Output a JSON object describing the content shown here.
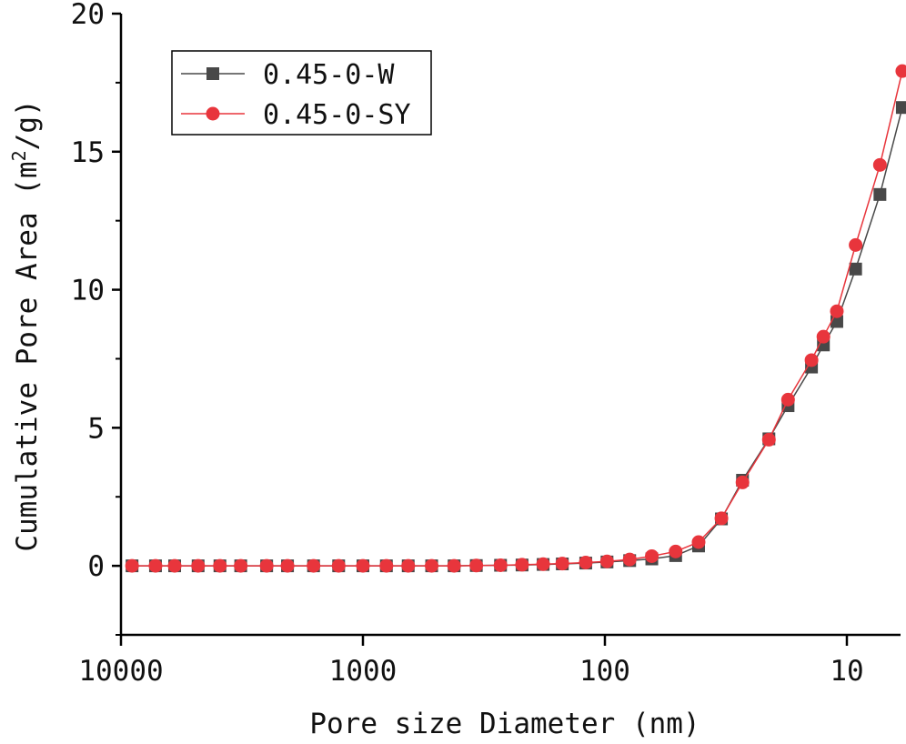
{
  "chart_data": {
    "type": "line",
    "title": "",
    "xlabel": "Pore size Diameter (nm)",
    "ylabel": {
      "main": "Cumulative Pore Area (m",
      "sup": "2",
      "tail": "/g)"
    },
    "x_scale": "log",
    "x_reversed": true,
    "xlim": [
      10000,
      6
    ],
    "ylim": [
      -2.5,
      20
    ],
    "x_ticks": [
      10000,
      1000,
      100,
      10
    ],
    "x_tick_labels": [
      "10000",
      "1000",
      "100",
      "10"
    ],
    "y_ticks": [
      0,
      5,
      10,
      15,
      20
    ],
    "y_tick_labels": [
      "0",
      "5",
      "10",
      "15",
      "20"
    ],
    "legend_position": "top-left",
    "series": [
      {
        "name": "0.45-0-W",
        "marker": "square",
        "color": "#484848",
        "points": [
          [
            9000,
            0.0
          ],
          [
            7200,
            0.0
          ],
          [
            6000,
            0.0
          ],
          [
            4800,
            0.0
          ],
          [
            3900,
            0.0
          ],
          [
            3200,
            0.0
          ],
          [
            2500,
            0.0
          ],
          [
            2050,
            0.0
          ],
          [
            1600,
            0.0
          ],
          [
            1260,
            0.0
          ],
          [
            1000,
            0.0
          ],
          [
            800,
            0.0
          ],
          [
            650,
            0.0
          ],
          [
            520,
            0.0
          ],
          [
            420,
            0.0
          ],
          [
            340,
            0.01
          ],
          [
            270,
            0.02
          ],
          [
            220,
            0.03
          ],
          [
            180,
            0.05
          ],
          [
            150,
            0.07
          ],
          [
            120,
            0.1
          ],
          [
            98,
            0.14
          ],
          [
            79,
            0.19
          ],
          [
            64,
            0.25
          ],
          [
            51,
            0.37
          ],
          [
            41,
            0.72
          ],
          [
            33,
            1.7
          ],
          [
            27,
            3.1
          ],
          [
            21,
            4.6
          ],
          [
            17.5,
            5.8
          ],
          [
            14,
            7.2
          ],
          [
            12.5,
            8.0
          ],
          [
            11,
            8.85
          ],
          [
            9.2,
            10.75
          ],
          [
            7.3,
            13.45
          ],
          [
            5.9,
            16.6
          ]
        ]
      },
      {
        "name": "0.45-0-SY",
        "marker": "circle",
        "color": "#e8353c",
        "points": [
          [
            9000,
            0.0
          ],
          [
            7200,
            0.0
          ],
          [
            6000,
            0.0
          ],
          [
            4800,
            0.0
          ],
          [
            3900,
            0.0
          ],
          [
            3200,
            0.0
          ],
          [
            2500,
            0.0
          ],
          [
            2050,
            0.0
          ],
          [
            1600,
            0.0
          ],
          [
            1260,
            0.0
          ],
          [
            1000,
            0.0
          ],
          [
            800,
            0.0
          ],
          [
            650,
            0.0
          ],
          [
            520,
            0.0
          ],
          [
            420,
            0.0
          ],
          [
            340,
            0.01
          ],
          [
            270,
            0.02
          ],
          [
            220,
            0.04
          ],
          [
            180,
            0.06
          ],
          [
            150,
            0.08
          ],
          [
            120,
            0.12
          ],
          [
            98,
            0.16
          ],
          [
            79,
            0.23
          ],
          [
            64,
            0.35
          ],
          [
            51,
            0.52
          ],
          [
            41,
            0.86
          ],
          [
            33,
            1.72
          ],
          [
            27,
            3.02
          ],
          [
            21,
            4.57
          ],
          [
            17.5,
            6.02
          ],
          [
            14,
            7.45
          ],
          [
            12.5,
            8.3
          ],
          [
            11,
            9.22
          ],
          [
            9.2,
            11.62
          ],
          [
            7.3,
            14.52
          ],
          [
            5.9,
            17.92
          ]
        ]
      }
    ]
  }
}
